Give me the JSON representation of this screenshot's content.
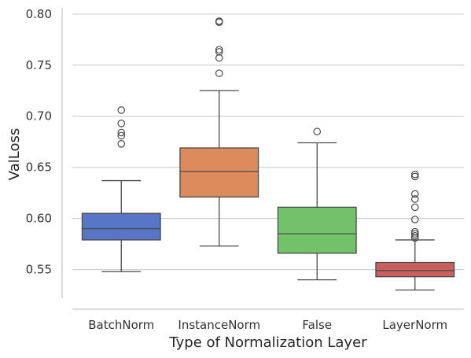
{
  "chart_data": {
    "type": "box",
    "title": "",
    "xlabel": "Type of Normalization Layer",
    "ylabel": "ValLoss",
    "ylim": [
      0.522,
      0.806
    ],
    "yticks": [
      0.55,
      0.6,
      0.65,
      0.7,
      0.75,
      0.8
    ],
    "ytick_labels": [
      "0.55",
      "0.60",
      "0.65",
      "0.70",
      "0.75",
      "0.80"
    ],
    "grid": "horizontal",
    "categories": [
      "BatchNorm",
      "InstanceNorm",
      "False",
      "LayerNorm"
    ],
    "boxes": [
      {
        "name": "BatchNorm",
        "color": "#5876c8",
        "whisker_low": 0.548,
        "q1": 0.579,
        "median": 0.59,
        "q3": 0.605,
        "whisker_high": 0.637,
        "outliers": [
          0.673,
          0.681,
          0.684,
          0.693,
          0.706
        ]
      },
      {
        "name": "InstanceNorm",
        "color": "#dd8a5c",
        "whisker_low": 0.573,
        "q1": 0.621,
        "median": 0.646,
        "q3": 0.669,
        "whisker_high": 0.725,
        "outliers": [
          0.742,
          0.757,
          0.763,
          0.765,
          0.792,
          0.793
        ]
      },
      {
        "name": "False",
        "color": "#72c26c",
        "whisker_low": 0.54,
        "q1": 0.566,
        "median": 0.585,
        "q3": 0.611,
        "whisker_high": 0.674,
        "outliers": [
          0.685
        ]
      },
      {
        "name": "LayerNorm",
        "color": "#c95f5f",
        "whisker_low": 0.53,
        "q1": 0.543,
        "median": 0.549,
        "q3": 0.557,
        "whisker_high": 0.579,
        "outliers": [
          0.581,
          0.583,
          0.585,
          0.587,
          0.599,
          0.611,
          0.619,
          0.624,
          0.641,
          0.643
        ]
      }
    ]
  }
}
